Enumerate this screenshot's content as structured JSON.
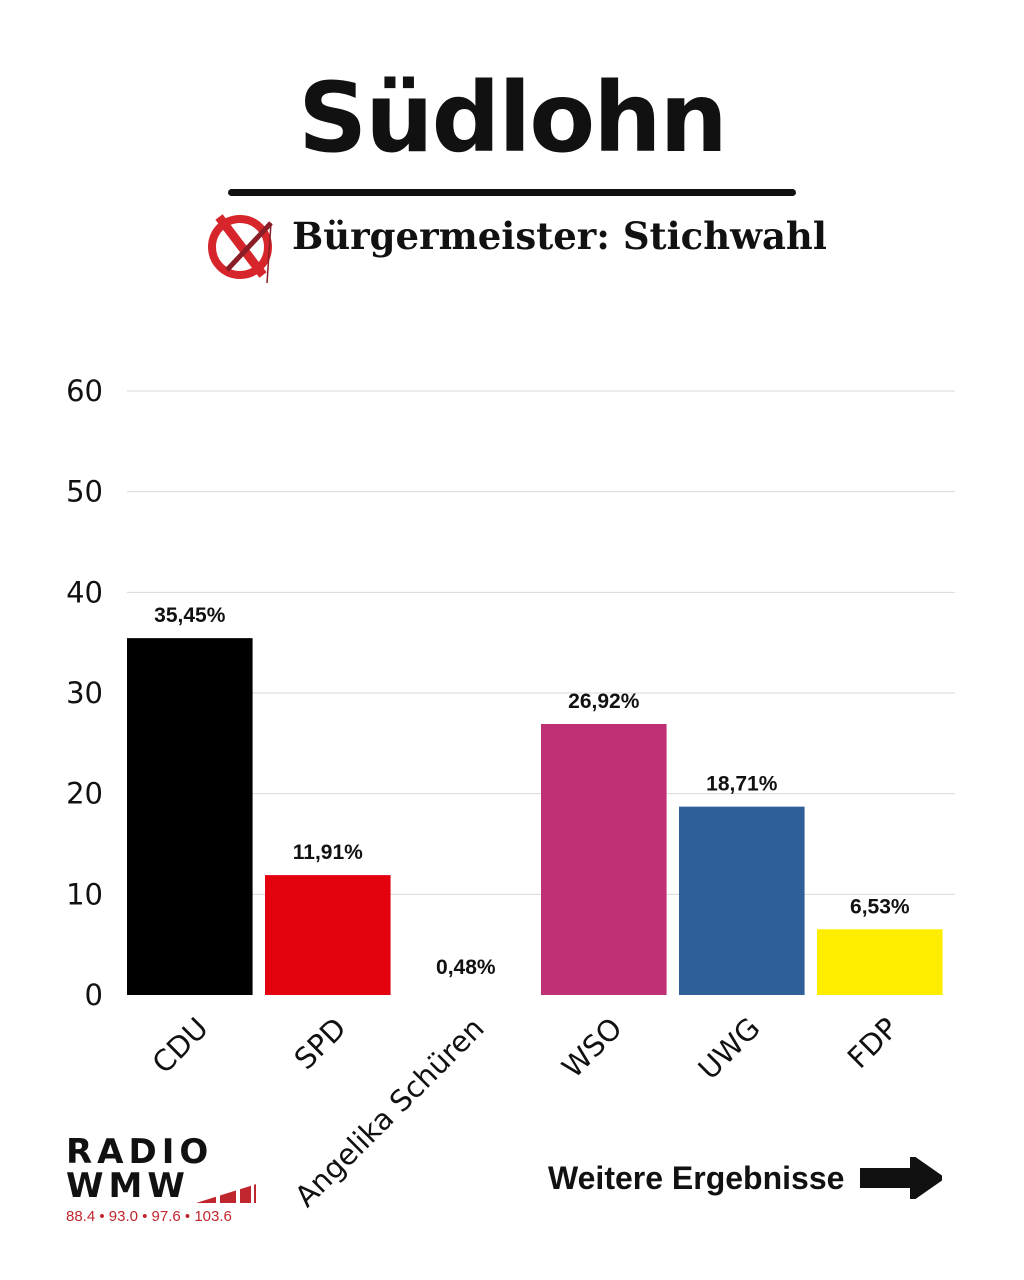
{
  "header": {
    "title": "Südlohn",
    "subtitle": "Bürgermeister: Stichwahl"
  },
  "footer": {
    "logo_line1": "RADIO",
    "logo_line2": "WMW",
    "frequencies": "88.4 • 93.0 • 97.6 • 103.6",
    "more_results": "Weitere Ergebnisse"
  },
  "chart_data": {
    "type": "bar",
    "title": "Südlohn",
    "categories": [
      "CDU",
      "SPD",
      "Angelika Schüren",
      "WSO",
      "UWG",
      "FDP"
    ],
    "values": [
      35.45,
      11.91,
      0.48,
      26.92,
      18.71,
      6.53
    ],
    "data_labels": [
      "35,45%",
      "11,91%",
      "0,48%",
      "26,92%",
      "18,71%",
      "6,53%"
    ],
    "colors": [
      "#000000",
      "#e3000f",
      "#cccccc",
      "#bf3074",
      "#2f5f98",
      "#ffed00"
    ],
    "ylim": [
      0,
      60
    ],
    "yticks": [
      0,
      10,
      20,
      30,
      40,
      50,
      60
    ],
    "grid": true,
    "xlabel": "",
    "ylabel": ""
  }
}
